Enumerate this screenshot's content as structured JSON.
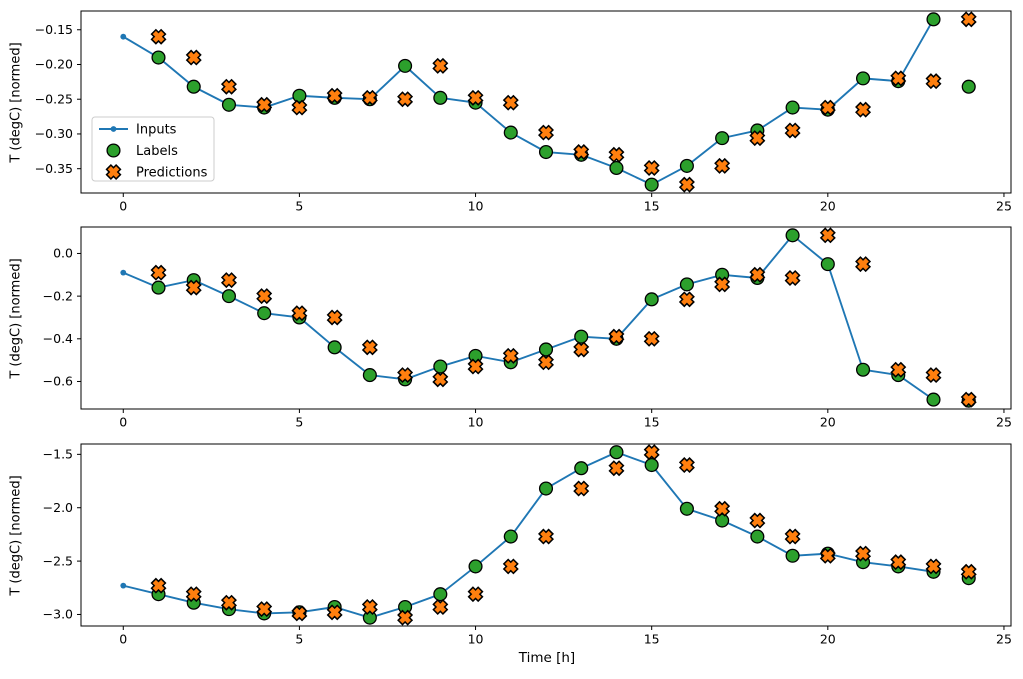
{
  "figure": {
    "background": "#ffffff",
    "xlabel": "Time [h]",
    "ylabel": "T (degC) [normed]",
    "text_color": "#000000",
    "spine_color": "#000000",
    "input_color": "#1f77b4",
    "label_color": "#2ca02c",
    "prediction_color": "#ff7f0e",
    "marker_edge_color": "#000000",
    "legend": {
      "border_color": "#cccccc",
      "fill_color": "#ffffff",
      "items": [
        {
          "label": "Inputs",
          "marker": "line-dot",
          "color": "#1f77b4"
        },
        {
          "label": "Labels",
          "marker": "circle",
          "color": "#2ca02c"
        },
        {
          "label": "Predictions",
          "marker": "x",
          "color": "#ff7f0e"
        }
      ]
    }
  },
  "chart_data": [
    {
      "type": "line",
      "title": "",
      "xlabel": "Time [h]",
      "ylabel": "T (degC) [normed]",
      "xlim": [
        -1.2,
        25.2
      ],
      "ylim": [
        -0.385,
        -0.123
      ],
      "xticks": [
        0,
        5,
        10,
        15,
        20,
        25
      ],
      "xtick_labels": [
        "0",
        "5",
        "10",
        "15",
        "20",
        "25"
      ],
      "yticks": [
        -0.15,
        -0.2,
        -0.25,
        -0.3,
        -0.35
      ],
      "ytick_labels": [
        "−0.15",
        "−0.20",
        "−0.25",
        "−0.30",
        "−0.35"
      ],
      "grid": false,
      "legend_visible": true,
      "series": [
        {
          "name": "Inputs",
          "marker": "line-dot",
          "x": [
            0,
            1,
            2,
            3,
            4,
            5,
            6,
            7,
            8,
            9,
            10,
            11,
            12,
            13,
            14,
            15,
            16,
            17,
            18,
            19,
            20,
            21,
            22,
            23
          ],
          "y": [
            -0.16,
            -0.19,
            -0.232,
            -0.258,
            -0.262,
            -0.245,
            -0.248,
            -0.25,
            -0.202,
            -0.248,
            -0.255,
            -0.298,
            -0.326,
            -0.33,
            -0.349,
            -0.373,
            -0.346,
            -0.306,
            -0.295,
            -0.262,
            -0.265,
            -0.22,
            -0.224,
            -0.135
          ]
        },
        {
          "name": "Labels",
          "marker": "circle",
          "x": [
            1,
            2,
            3,
            4,
            5,
            6,
            7,
            8,
            9,
            10,
            11,
            12,
            13,
            14,
            15,
            16,
            17,
            18,
            19,
            20,
            21,
            22,
            23,
            24
          ],
          "y": [
            -0.19,
            -0.232,
            -0.258,
            -0.262,
            -0.245,
            -0.248,
            -0.25,
            -0.202,
            -0.248,
            -0.255,
            -0.298,
            -0.326,
            -0.33,
            -0.349,
            -0.373,
            -0.346,
            -0.306,
            -0.295,
            -0.262,
            -0.265,
            -0.22,
            -0.224,
            -0.135,
            -0.232
          ]
        },
        {
          "name": "Predictions",
          "marker": "x",
          "x": [
            1,
            2,
            3,
            4,
            5,
            6,
            7,
            8,
            9,
            10,
            11,
            12,
            13,
            14,
            15,
            16,
            17,
            18,
            19,
            20,
            21,
            22,
            23,
            24
          ],
          "y": [
            -0.16,
            -0.19,
            -0.232,
            -0.258,
            -0.262,
            -0.245,
            -0.248,
            -0.25,
            -0.202,
            -0.248,
            -0.255,
            -0.298,
            -0.326,
            -0.33,
            -0.349,
            -0.373,
            -0.346,
            -0.306,
            -0.295,
            -0.262,
            -0.265,
            -0.22,
            -0.224,
            -0.135
          ]
        }
      ]
    },
    {
      "type": "line",
      "title": "",
      "xlabel": "Time [h]",
      "ylabel": "T (degC) [normed]",
      "xlim": [
        -1.2,
        25.2
      ],
      "ylim": [
        -0.729,
        0.124
      ],
      "xticks": [
        0,
        5,
        10,
        15,
        20,
        25
      ],
      "xtick_labels": [
        "0",
        "5",
        "10",
        "15",
        "20",
        "25"
      ],
      "yticks": [
        0.0,
        -0.2,
        -0.4,
        -0.6
      ],
      "ytick_labels": [
        "0.0",
        "−0.2",
        "−0.4",
        "−0.6"
      ],
      "grid": false,
      "legend_visible": false,
      "series": [
        {
          "name": "Inputs",
          "marker": "line-dot",
          "x": [
            0,
            1,
            2,
            3,
            4,
            5,
            6,
            7,
            8,
            9,
            10,
            11,
            12,
            13,
            14,
            15,
            16,
            17,
            18,
            19,
            20,
            21,
            22,
            23
          ],
          "y": [
            -0.09,
            -0.16,
            -0.125,
            -0.2,
            -0.28,
            -0.3,
            -0.44,
            -0.57,
            -0.59,
            -0.53,
            -0.48,
            -0.51,
            -0.45,
            -0.39,
            -0.4,
            -0.215,
            -0.145,
            -0.1,
            -0.115,
            0.085,
            -0.05,
            -0.545,
            -0.57,
            -0.685
          ]
        },
        {
          "name": "Labels",
          "marker": "circle",
          "x": [
            1,
            2,
            3,
            4,
            5,
            6,
            7,
            8,
            9,
            10,
            11,
            12,
            13,
            14,
            15,
            16,
            17,
            18,
            19,
            20,
            21,
            22,
            23,
            24
          ],
          "y": [
            -0.16,
            -0.125,
            -0.2,
            -0.28,
            -0.3,
            -0.44,
            -0.57,
            -0.59,
            -0.53,
            -0.48,
            -0.51,
            -0.45,
            -0.39,
            -0.4,
            -0.215,
            -0.145,
            -0.1,
            -0.115,
            0.085,
            -0.05,
            -0.545,
            -0.57,
            -0.685,
            -0.69
          ]
        },
        {
          "name": "Predictions",
          "marker": "x",
          "x": [
            1,
            2,
            3,
            4,
            5,
            6,
            7,
            8,
            9,
            10,
            11,
            12,
            13,
            14,
            15,
            16,
            17,
            18,
            19,
            20,
            21,
            22,
            23,
            24
          ],
          "y": [
            -0.09,
            -0.16,
            -0.125,
            -0.2,
            -0.28,
            -0.3,
            -0.44,
            -0.57,
            -0.59,
            -0.53,
            -0.48,
            -0.51,
            -0.45,
            -0.39,
            -0.4,
            -0.215,
            -0.145,
            -0.1,
            -0.115,
            0.085,
            -0.05,
            -0.545,
            -0.57,
            -0.685
          ]
        }
      ]
    },
    {
      "type": "line",
      "title": "",
      "xlabel": "Time [h]",
      "ylabel": "T (degC) [normed]",
      "xlim": [
        -1.2,
        25.2
      ],
      "ylim": [
        -3.108,
        -1.403
      ],
      "xticks": [
        0,
        5,
        10,
        15,
        20,
        25
      ],
      "xtick_labels": [
        "0",
        "5",
        "10",
        "15",
        "20",
        "25"
      ],
      "yticks": [
        -1.5,
        -2.0,
        -2.5,
        -3.0
      ],
      "ytick_labels": [
        "−1.5",
        "−2.0",
        "−2.5",
        "−3.0"
      ],
      "grid": false,
      "legend_visible": false,
      "series": [
        {
          "name": "Inputs",
          "marker": "line-dot",
          "x": [
            0,
            1,
            2,
            3,
            4,
            5,
            6,
            7,
            8,
            9,
            10,
            11,
            12,
            13,
            14,
            15,
            16,
            17,
            18,
            19,
            20,
            21,
            22,
            23
          ],
          "y": [
            -2.73,
            -2.81,
            -2.89,
            -2.95,
            -2.99,
            -2.98,
            -2.93,
            -3.03,
            -2.93,
            -2.81,
            -2.55,
            -2.27,
            -1.82,
            -1.63,
            -1.48,
            -1.6,
            -2.01,
            -2.12,
            -2.27,
            -2.45,
            -2.43,
            -2.51,
            -2.55,
            -2.6
          ]
        },
        {
          "name": "Labels",
          "marker": "circle",
          "x": [
            1,
            2,
            3,
            4,
            5,
            6,
            7,
            8,
            9,
            10,
            11,
            12,
            13,
            14,
            15,
            16,
            17,
            18,
            19,
            20,
            21,
            22,
            23,
            24
          ],
          "y": [
            -2.81,
            -2.89,
            -2.95,
            -2.99,
            -2.98,
            -2.93,
            -3.03,
            -2.93,
            -2.81,
            -2.55,
            -2.27,
            -1.82,
            -1.63,
            -1.48,
            -1.6,
            -2.01,
            -2.12,
            -2.27,
            -2.45,
            -2.43,
            -2.51,
            -2.55,
            -2.6,
            -2.66
          ]
        },
        {
          "name": "Predictions",
          "marker": "x",
          "x": [
            1,
            2,
            3,
            4,
            5,
            6,
            7,
            8,
            9,
            10,
            11,
            12,
            13,
            14,
            15,
            16,
            17,
            18,
            19,
            20,
            21,
            22,
            23,
            24
          ],
          "y": [
            -2.73,
            -2.81,
            -2.89,
            -2.95,
            -2.99,
            -2.98,
            -2.93,
            -3.03,
            -2.93,
            -2.81,
            -2.55,
            -2.27,
            -1.82,
            -1.63,
            -1.48,
            -1.6,
            -2.01,
            -2.12,
            -2.27,
            -2.45,
            -2.43,
            -2.51,
            -2.55,
            -2.6
          ]
        }
      ]
    }
  ]
}
